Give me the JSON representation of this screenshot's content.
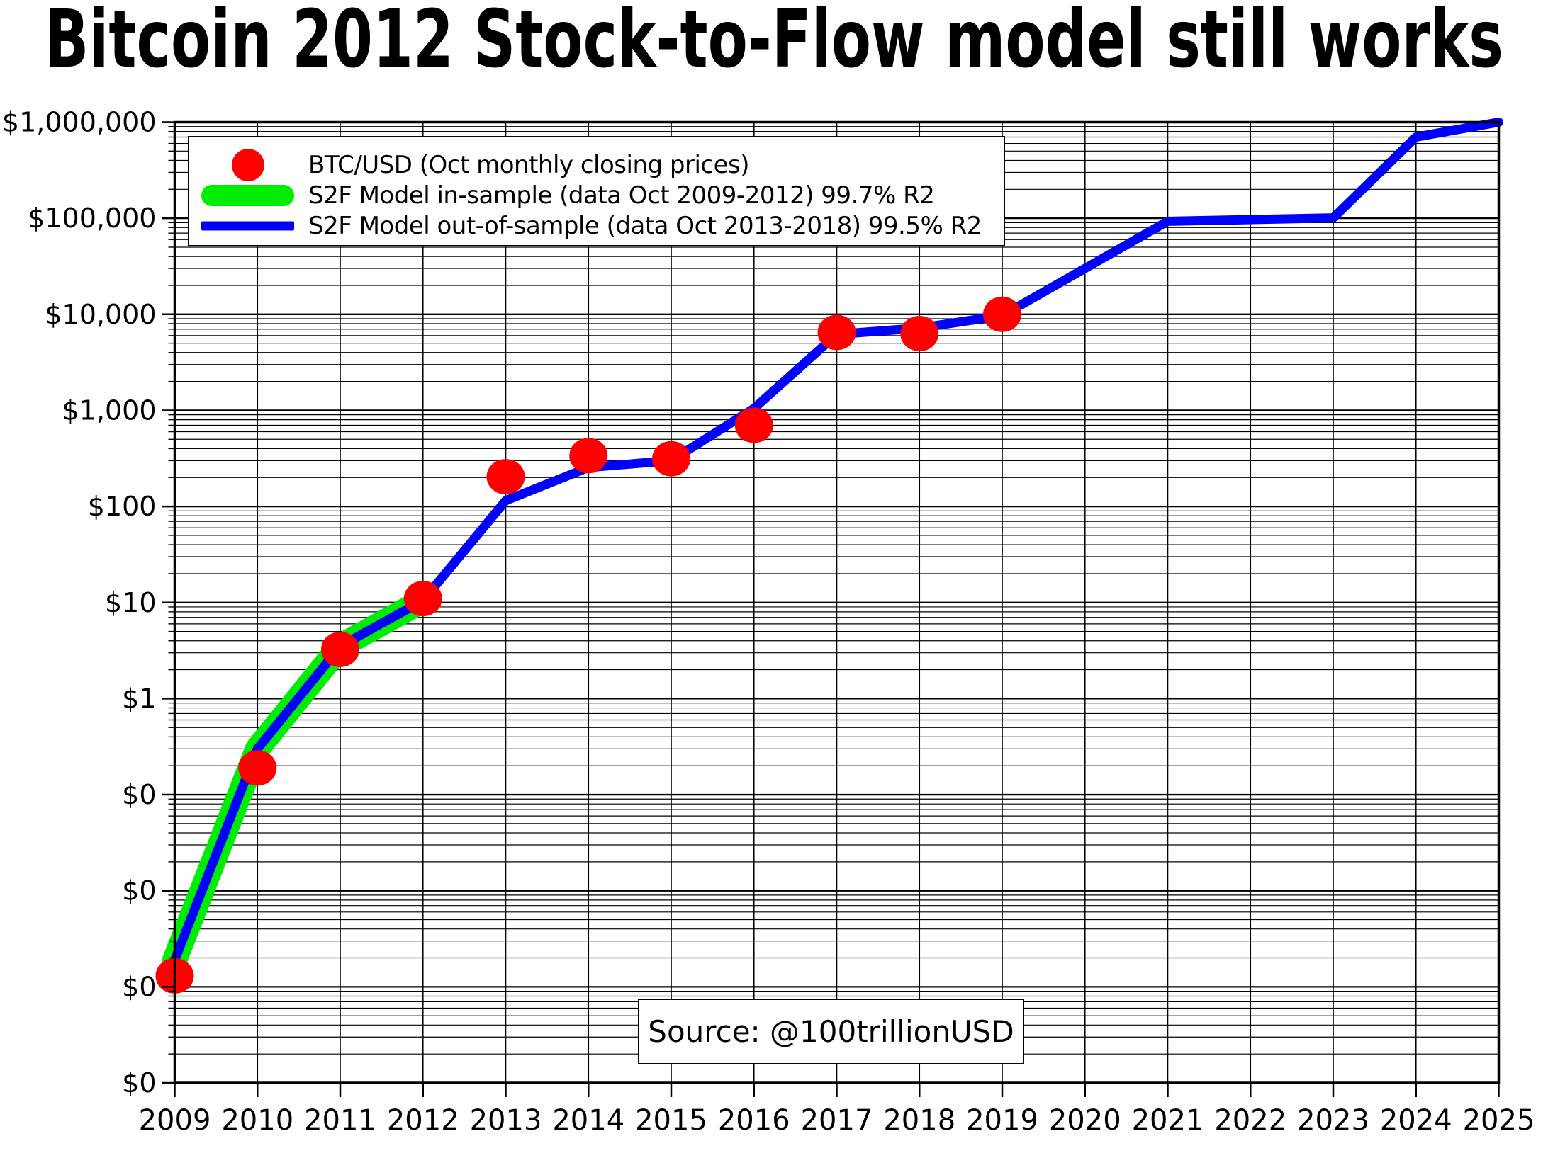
{
  "title": "Bitcoin 2012 Stock-to-Flow model still works",
  "source_label": "Source: @100trillionUSD",
  "colors": {
    "btc_dots": "#ff0000",
    "in_sample": "#00ec00",
    "out_sample": "#0000ff",
    "grid": "#000000",
    "background": "#ffffff"
  },
  "chart_data": {
    "type": "line",
    "title": "Bitcoin 2012 Stock-to-Flow model still works",
    "xlabel": "",
    "ylabel": "",
    "xlim": [
      2009,
      2025
    ],
    "ylim": [
      0.0001,
      1000000
    ],
    "y_scale": "log10",
    "grid": "major and minor log gridlines, black, on",
    "legend_position": "upper left",
    "x_tick_labels": [
      "2009",
      "2010",
      "2011",
      "2012",
      "2013",
      "2014",
      "2015",
      "2016",
      "2017",
      "2018",
      "2019",
      "2020",
      "2021",
      "2022",
      "2023",
      "2024",
      "2025"
    ],
    "y_tick_values": [
      1000000,
      100000,
      10000,
      1000,
      100,
      10,
      1,
      0.1,
      0.01,
      0.001,
      0.0001
    ],
    "y_tick_labels": [
      "$1,000,000",
      "$100,000",
      "$10,000",
      "$1,000",
      "$100",
      "$10",
      "$1",
      "$0",
      "$0",
      "$0",
      "$0"
    ],
    "series": [
      {
        "name": "BTC/USD (Oct monthly closing prices)",
        "type": "scatter",
        "color": "#ff0000",
        "points": [
          [
            2009,
            0.0013
          ],
          [
            2010,
            0.19
          ],
          [
            2011,
            3.25
          ],
          [
            2012,
            11
          ],
          [
            2013,
            204
          ],
          [
            2014,
            338
          ],
          [
            2015,
            314
          ],
          [
            2016,
            700
          ],
          [
            2017,
            6470
          ],
          [
            2018,
            6300
          ],
          [
            2019,
            10000
          ]
        ]
      },
      {
        "name": "S2F Model in-sample (data Oct 2009-2012) 99.7% R2",
        "type": "line",
        "color": "#00ec00",
        "stroke_width": 35,
        "points": [
          [
            2009,
            0.0019
          ],
          [
            2010,
            0.3
          ],
          [
            2011,
            3.5
          ],
          [
            2012,
            10.5
          ]
        ]
      },
      {
        "name": "S2F Model out-of-sample (data Oct 2013-2018) 99.5% R2",
        "type": "line",
        "color": "#0000ff",
        "stroke_width": 13,
        "points": [
          [
            2009,
            0.0019
          ],
          [
            2010,
            0.3
          ],
          [
            2011,
            3.5
          ],
          [
            2012,
            10.5
          ],
          [
            2013,
            115
          ],
          [
            2014,
            255
          ],
          [
            2015,
            300
          ],
          [
            2016,
            1050
          ],
          [
            2017,
            6200
          ],
          [
            2018,
            7200
          ],
          [
            2019,
            9700
          ],
          [
            2021,
            93000
          ],
          [
            2023,
            101000
          ],
          [
            2024,
            700000
          ],
          [
            2025,
            1000000
          ]
        ]
      }
    ]
  }
}
